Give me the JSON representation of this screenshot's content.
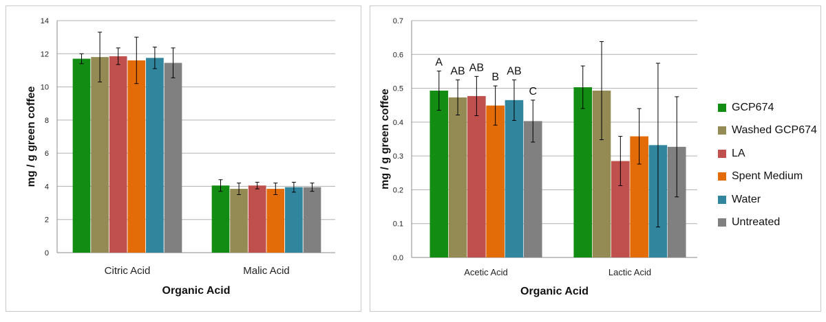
{
  "chart_data": [
    {
      "type": "bar",
      "title": "",
      "xlabel": "Organic Acid",
      "ylabel": "mg / g green coffee",
      "ylim": [
        0,
        14
      ],
      "yticks": [
        0,
        2,
        4,
        6,
        8,
        10,
        12,
        14
      ],
      "grid": true,
      "categories": [
        "Citric Acid",
        "Malic Acid"
      ],
      "series": [
        {
          "name": "GCP674",
          "values": [
            11.7,
            4.05
          ],
          "errors": [
            0.3,
            0.35
          ]
        },
        {
          "name": "Washed GCP674",
          "values": [
            11.8,
            3.85
          ],
          "errors": [
            1.5,
            0.35
          ]
        },
        {
          "name": "LA",
          "values": [
            11.85,
            4.05
          ],
          "errors": [
            0.5,
            0.2
          ]
        },
        {
          "name": "Spent Medium",
          "values": [
            11.6,
            3.85
          ],
          "errors": [
            1.4,
            0.35
          ]
        },
        {
          "name": "Water",
          "values": [
            11.75,
            3.95
          ],
          "errors": [
            0.65,
            0.3
          ]
        },
        {
          "name": "Untreated",
          "values": [
            11.45,
            3.95
          ],
          "errors": [
            0.9,
            0.25
          ]
        }
      ]
    },
    {
      "type": "bar",
      "title": "",
      "xlabel": "Organic Acid",
      "ylabel": "mg / g green coffee",
      "ylim": [
        0,
        0.7
      ],
      "yticks": [
        0,
        0.1,
        0.2,
        0.3,
        0.4,
        0.5,
        0.6,
        0.7
      ],
      "grid": true,
      "categories": [
        "Acetic Acid",
        "Lactic Acid"
      ],
      "series": [
        {
          "name": "GCP674",
          "values": [
            0.493,
            0.503
          ],
          "errors": [
            0.058,
            0.063
          ]
        },
        {
          "name": "Washed GCP674",
          "values": [
            0.473,
            0.493
          ],
          "errors": [
            0.052,
            0.145
          ]
        },
        {
          "name": "LA",
          "values": [
            0.477,
            0.285
          ],
          "errors": [
            0.058,
            0.073
          ]
        },
        {
          "name": "Spent Medium",
          "values": [
            0.449,
            0.358
          ],
          "errors": [
            0.058,
            0.082
          ]
        },
        {
          "name": "Water",
          "values": [
            0.465,
            0.332
          ],
          "errors": [
            0.06,
            0.242
          ]
        },
        {
          "name": "Untreated",
          "values": [
            0.403,
            0.327
          ],
          "errors": [
            0.062,
            0.148
          ]
        }
      ],
      "annotations": [
        "A",
        "AB",
        "AB",
        "B",
        "AB",
        "C"
      ]
    }
  ],
  "legend": {
    "items": [
      {
        "label": "GCP674",
        "color": "#128c12"
      },
      {
        "label": "Washed GCP674",
        "color": "#948a54"
      },
      {
        "label": "LA",
        "color": "#c0504d"
      },
      {
        "label": "Spent Medium",
        "color": "#e36c09"
      },
      {
        "label": "Water",
        "color": "#31859c"
      },
      {
        "label": "Untreated",
        "color": "#808080"
      }
    ]
  },
  "colors": {
    "gridline": "#b0b0b0",
    "axis": "#888888",
    "errorbar": "#000000"
  }
}
